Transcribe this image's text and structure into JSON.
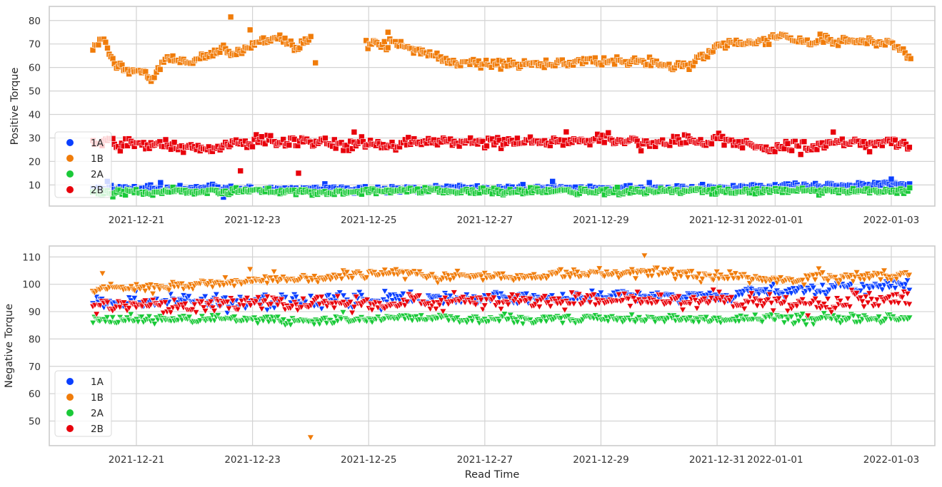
{
  "chart_data": [
    {
      "type": "scatter",
      "ylabel": "Positive Torque",
      "xlabel": "",
      "marker": "square",
      "x_range": [
        "2021-12-19T12:00",
        "2022-01-03T18:00"
      ],
      "ylim": [
        1,
        86
      ],
      "yticks": [
        10,
        20,
        30,
        40,
        50,
        60,
        70,
        80
      ],
      "xticks": [
        "2021-12-21",
        "2021-12-23",
        "2021-12-25",
        "2021-12-27",
        "2021-12-29",
        "2021-12-31",
        "2022-01-01",
        "2022-01-03"
      ],
      "grid": true,
      "legend_position": "lower-left",
      "series": [
        {
          "name": "1A",
          "color": "#0a3fff",
          "keypoints": [
            [
              "2021-12-20T06:00",
              8.5
            ],
            [
              "2021-12-24T00:00",
              8.0
            ],
            [
              "2021-12-27T00:00",
              8.5
            ],
            [
              "2021-12-30T00:00",
              8.5
            ],
            [
              "2021-12-31T12:00",
              9.0
            ],
            [
              "2022-01-01T12:00",
              9.5
            ],
            [
              "2022-01-03T08:00",
              10.5
            ]
          ],
          "jitter": 1.0,
          "outliers": [
            [
              "2021-12-20T12:00",
              11.5
            ],
            [
              "2021-12-21T10:00",
              11.0
            ],
            [
              "2021-12-22T12:00",
              4.8
            ],
            [
              "2021-12-28T04:00",
              11.5
            ],
            [
              "2021-12-29T20:00",
              11.0
            ],
            [
              "2022-01-03T00:00",
              12.5
            ]
          ]
        },
        {
          "name": "1B",
          "color": "#f07c0a",
          "keypoints": [
            [
              "2021-12-20T06:00",
              67
            ],
            [
              "2021-12-20T10:00",
              73
            ],
            [
              "2021-12-20T16:00",
              60
            ],
            [
              "2021-12-21T00:00",
              58
            ],
            [
              "2021-12-21T06:00",
              55
            ],
            [
              "2021-12-21T12:00",
              63
            ],
            [
              "2021-12-22T00:00",
              63
            ],
            [
              "2021-12-22T12:00",
              68
            ],
            [
              "2021-12-22T16:00",
              65
            ],
            [
              "2021-12-23T00:00",
              70
            ],
            [
              "2021-12-23T12:00",
              73
            ],
            [
              "2021-12-23T18:00",
              68
            ],
            [
              "2021-12-24T00:00",
              72
            ]
          ],
          "keypoints2": [
            [
              "2021-12-24T23:00",
              71
            ],
            [
              "2021-12-25T10:00",
              70
            ],
            [
              "2021-12-26T00:00",
              66
            ],
            [
              "2021-12-26T12:00",
              62
            ],
            [
              "2021-12-27T12:00",
              61
            ],
            [
              "2021-12-28T06:00",
              62
            ],
            [
              "2021-12-29T00:00",
              63
            ],
            [
              "2021-12-29T20:00",
              62
            ],
            [
              "2021-12-30T06:00",
              60
            ],
            [
              "2021-12-30T14:00",
              62
            ],
            [
              "2021-12-31T00:00",
              69
            ],
            [
              "2021-12-31T18:00",
              72
            ],
            [
              "2022-01-01T00:00",
              74
            ],
            [
              "2022-01-01T12:00",
              71
            ],
            [
              "2022-01-02T00:00",
              71
            ],
            [
              "2022-01-02T18:00",
              71
            ],
            [
              "2022-01-03T00:00",
              70
            ],
            [
              "2022-01-03T08:00",
              64
            ]
          ],
          "jitter": 1.5,
          "outliers": [
            [
              "2021-12-22T15:00",
              81.5
            ],
            [
              "2021-12-22T23:00",
              76
            ],
            [
              "2021-12-24T02:00",
              62
            ],
            [
              "2021-12-25T08:00",
              75
            ]
          ]
        },
        {
          "name": "2A",
          "color": "#1ac938",
          "keypoints": [
            [
              "2021-12-20T06:00",
              7.0
            ],
            [
              "2022-01-03T08:00",
              7.5
            ]
          ],
          "jitter": 1.0,
          "outliers": []
        },
        {
          "name": "2B",
          "color": "#e8000b",
          "keypoints": [
            [
              "2021-12-20T06:00",
              28
            ],
            [
              "2021-12-21T06:00",
              27
            ],
            [
              "2021-12-22T00:00",
              26
            ],
            [
              "2021-12-23T00:00",
              28
            ],
            [
              "2021-12-24T00:00",
              28
            ],
            [
              "2021-12-25T00:00",
              27
            ],
            [
              "2021-12-26T00:00",
              28
            ],
            [
              "2021-12-27T00:00",
              28
            ],
            [
              "2021-12-28T00:00",
              28
            ],
            [
              "2021-12-29T00:00",
              30
            ],
            [
              "2021-12-30T00:00",
              28
            ],
            [
              "2021-12-31T00:00",
              29
            ],
            [
              "2022-01-01T00:00",
              26
            ],
            [
              "2022-01-02T00:00",
              28
            ],
            [
              "2022-01-03T08:00",
              28
            ]
          ],
          "jitter": 2.0,
          "outliers": [
            [
              "2021-12-22T19:00",
              16
            ],
            [
              "2021-12-23T19:00",
              15
            ],
            [
              "2021-12-24T18:00",
              32.5
            ],
            [
              "2022-01-02T00:00",
              32.5
            ]
          ]
        }
      ]
    },
    {
      "type": "scatter",
      "ylabel": "Negative Torque",
      "xlabel": "Read Time",
      "marker": "triangle-down",
      "x_range": [
        "2021-12-19T12:00",
        "2022-01-03T18:00"
      ],
      "ylim": [
        41,
        114
      ],
      "yticks": [
        50,
        60,
        70,
        80,
        90,
        100,
        110
      ],
      "xticks": [
        "2021-12-21",
        "2021-12-23",
        "2021-12-25",
        "2021-12-27",
        "2021-12-29",
        "2021-12-31",
        "2022-01-01",
        "2022-01-03"
      ],
      "grid": true,
      "legend_position": "lower-left",
      "series": [
        {
          "name": "1A",
          "color": "#0a3fff",
          "keypoints": [
            [
              "2021-12-20T06:00",
              93
            ],
            [
              "2021-12-24T00:00",
              94
            ],
            [
              "2021-12-28T00:00",
              95
            ],
            [
              "2021-12-31T00:00",
              96
            ],
            [
              "2022-01-01T00:00",
              98
            ],
            [
              "2022-01-03T08:00",
              100
            ]
          ],
          "jitter": 1.8,
          "outliers": []
        },
        {
          "name": "1B",
          "color": "#f07c0a",
          "keypoints": [
            [
              "2021-12-20T06:00",
              99
            ],
            [
              "2021-12-21T00:00",
              98
            ],
            [
              "2021-12-22T00:00",
              100
            ],
            [
              "2021-12-23T00:00",
              101
            ],
            [
              "2021-12-24T00:00",
              102
            ],
            [
              "2021-12-25T00:00",
              104
            ],
            [
              "2021-12-27T00:00",
              103
            ],
            [
              "2021-12-30T00:00",
              104
            ],
            [
              "2022-01-01T00:00",
              102
            ],
            [
              "2022-01-03T08:00",
              103
            ]
          ],
          "jitter": 1.3,
          "outliers": [
            [
              "2021-12-20T10:00",
              104
            ],
            [
              "2021-12-22T23:00",
              105.5
            ],
            [
              "2021-12-24T00:00",
              44
            ],
            [
              "2021-12-29T18:00",
              110.5
            ]
          ]
        },
        {
          "name": "2A",
          "color": "#1ac938",
          "keypoints": [
            [
              "2021-12-20T06:00",
              87
            ],
            [
              "2022-01-03T08:00",
              87.5
            ]
          ],
          "jitter": 1.2,
          "outliers": []
        },
        {
          "name": "2B",
          "color": "#e8000b",
          "keypoints": [
            [
              "2021-12-20T06:00",
              92
            ],
            [
              "2021-12-24T00:00",
              93
            ],
            [
              "2021-12-28T00:00",
              94
            ],
            [
              "2021-12-31T00:00",
              94
            ],
            [
              "2022-01-01T00:00",
              93
            ],
            [
              "2022-01-03T08:00",
              95
            ]
          ],
          "jitter": 2.2,
          "outliers": []
        }
      ]
    }
  ]
}
